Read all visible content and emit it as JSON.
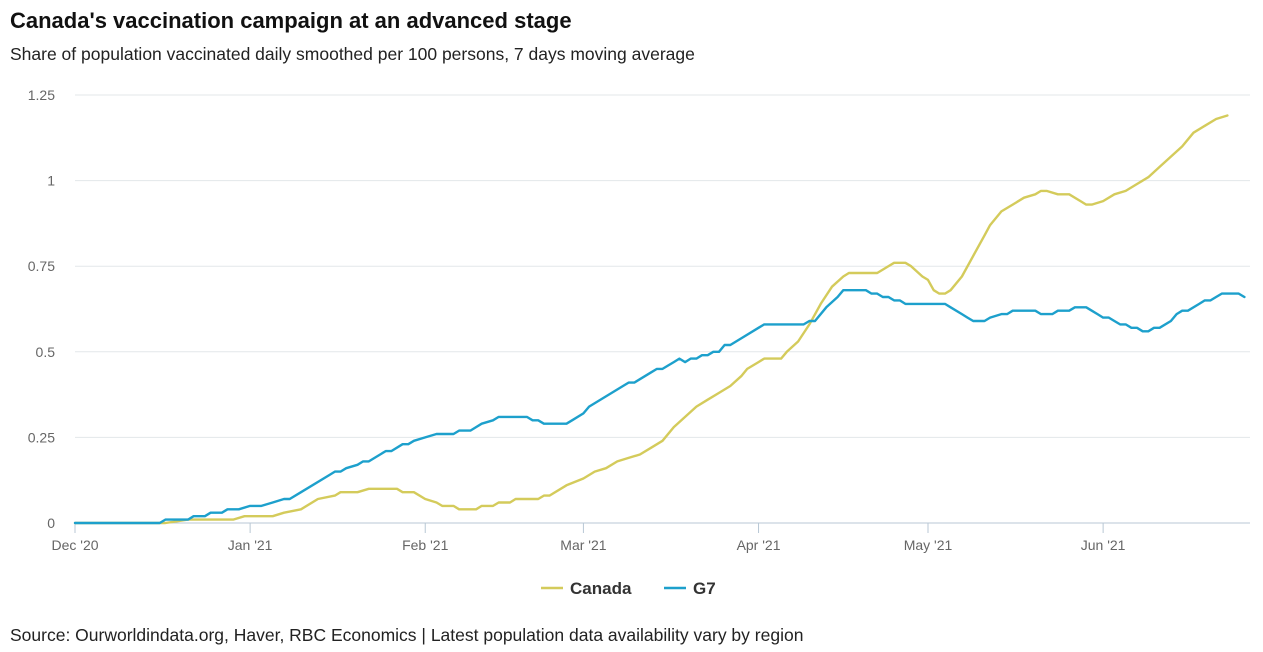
{
  "title": "Canada's vaccination campaign at an advanced stage",
  "subtitle": "Share of population vaccinated daily smoothed per 100 persons, 7 days moving average",
  "source": "Source: Ourworldindata.org, Haver, RBC Economics | Latest population data availability vary by region",
  "colors": {
    "canada": "#d4cb5b",
    "g7": "#1da0cc",
    "grid": "#e3e7ea",
    "axis": "#b8c7d4",
    "tick_text": "#666666"
  },
  "chart_data": {
    "type": "line",
    "title": "Canada's vaccination campaign at an advanced stage",
    "subtitle": "Share of population vaccinated daily smoothed per 100 persons, 7 days moving average",
    "xlabel": "",
    "ylabel": "",
    "ylim": [
      0,
      1.25
    ],
    "yticks": [
      0,
      0.25,
      0.5,
      0.75,
      1,
      1.25
    ],
    "ytick_labels": [
      "0",
      "0.25",
      "0.5",
      "0.75",
      "1",
      "1.25"
    ],
    "x_start": "2020-12-01",
    "x_end": "2021-06-26",
    "xticks": [
      {
        "day": 0,
        "label": "Dec '20"
      },
      {
        "day": 31,
        "label": "Jan '21"
      },
      {
        "day": 62,
        "label": "Feb '21"
      },
      {
        "day": 90,
        "label": "Mar '21"
      },
      {
        "day": 121,
        "label": "Apr '21"
      },
      {
        "day": 151,
        "label": "May '21"
      },
      {
        "day": 182,
        "label": "Jun '21"
      }
    ],
    "grid": true,
    "legend": "bottom-center",
    "series": [
      {
        "name": "Canada",
        "color": "#d4cb5b",
        "points": [
          [
            0,
            0
          ],
          [
            16,
            0
          ],
          [
            18,
            0.005
          ],
          [
            20,
            0.01
          ],
          [
            28,
            0.01
          ],
          [
            30,
            0.02
          ],
          [
            35,
            0.02
          ],
          [
            37,
            0.03
          ],
          [
            40,
            0.04
          ],
          [
            43,
            0.07
          ],
          [
            46,
            0.08
          ],
          [
            47,
            0.09
          ],
          [
            50,
            0.09
          ],
          [
            52,
            0.1
          ],
          [
            57,
            0.1
          ],
          [
            58,
            0.09
          ],
          [
            60,
            0.09
          ],
          [
            62,
            0.07
          ],
          [
            64,
            0.06
          ],
          [
            65,
            0.05
          ],
          [
            67,
            0.05
          ],
          [
            68,
            0.04
          ],
          [
            71,
            0.04
          ],
          [
            72,
            0.05
          ],
          [
            74,
            0.05
          ],
          [
            75,
            0.06
          ],
          [
            77,
            0.06
          ],
          [
            78,
            0.07
          ],
          [
            82,
            0.07
          ],
          [
            83,
            0.08
          ],
          [
            84,
            0.08
          ],
          [
            87,
            0.11
          ],
          [
            90,
            0.13
          ],
          [
            92,
            0.15
          ],
          [
            94,
            0.16
          ],
          [
            96,
            0.18
          ],
          [
            98,
            0.19
          ],
          [
            100,
            0.2
          ],
          [
            102,
            0.22
          ],
          [
            104,
            0.24
          ],
          [
            106,
            0.28
          ],
          [
            108,
            0.31
          ],
          [
            110,
            0.34
          ],
          [
            112,
            0.36
          ],
          [
            114,
            0.38
          ],
          [
            116,
            0.4
          ],
          [
            118,
            0.43
          ],
          [
            119,
            0.45
          ],
          [
            121,
            0.47
          ],
          [
            122,
            0.48
          ],
          [
            125,
            0.48
          ],
          [
            126,
            0.5
          ],
          [
            128,
            0.53
          ],
          [
            130,
            0.58
          ],
          [
            132,
            0.64
          ],
          [
            134,
            0.69
          ],
          [
            136,
            0.72
          ],
          [
            137,
            0.73
          ],
          [
            142,
            0.73
          ],
          [
            143,
            0.74
          ],
          [
            145,
            0.76
          ],
          [
            147,
            0.76
          ],
          [
            148,
            0.75
          ],
          [
            150,
            0.72
          ],
          [
            151,
            0.71
          ],
          [
            152,
            0.68
          ],
          [
            153,
            0.67
          ],
          [
            154,
            0.67
          ],
          [
            155,
            0.68
          ],
          [
            157,
            0.72
          ],
          [
            159,
            0.78
          ],
          [
            161,
            0.84
          ],
          [
            162,
            0.87
          ],
          [
            164,
            0.91
          ],
          [
            166,
            0.93
          ],
          [
            168,
            0.95
          ],
          [
            170,
            0.96
          ],
          [
            171,
            0.97
          ],
          [
            172,
            0.97
          ],
          [
            174,
            0.96
          ],
          [
            176,
            0.96
          ],
          [
            178,
            0.94
          ],
          [
            179,
            0.93
          ],
          [
            180,
            0.93
          ],
          [
            182,
            0.94
          ],
          [
            184,
            0.96
          ],
          [
            186,
            0.97
          ],
          [
            188,
            0.99
          ],
          [
            190,
            1.01
          ],
          [
            192,
            1.04
          ],
          [
            194,
            1.07
          ],
          [
            196,
            1.1
          ],
          [
            198,
            1.14
          ],
          [
            200,
            1.16
          ],
          [
            202,
            1.18
          ],
          [
            204,
            1.19
          ]
        ]
      },
      {
        "name": "G7",
        "color": "#1da0cc",
        "points": [
          [
            0,
            0
          ],
          [
            15,
            0
          ],
          [
            16,
            0.01
          ],
          [
            20,
            0.01
          ],
          [
            21,
            0.02
          ],
          [
            23,
            0.02
          ],
          [
            24,
            0.03
          ],
          [
            26,
            0.03
          ],
          [
            27,
            0.04
          ],
          [
            29,
            0.04
          ],
          [
            31,
            0.05
          ],
          [
            33,
            0.05
          ],
          [
            35,
            0.06
          ],
          [
            37,
            0.07
          ],
          [
            38,
            0.07
          ],
          [
            40,
            0.09
          ],
          [
            45,
            0.14
          ],
          [
            46,
            0.15
          ],
          [
            47,
            0.15
          ],
          [
            48,
            0.16
          ],
          [
            50,
            0.17
          ],
          [
            51,
            0.18
          ],
          [
            52,
            0.18
          ],
          [
            55,
            0.21
          ],
          [
            56,
            0.21
          ],
          [
            58,
            0.23
          ],
          [
            59,
            0.23
          ],
          [
            60,
            0.24
          ],
          [
            62,
            0.25
          ],
          [
            64,
            0.26
          ],
          [
            67,
            0.26
          ],
          [
            68,
            0.27
          ],
          [
            70,
            0.27
          ],
          [
            71,
            0.28
          ],
          [
            72,
            0.29
          ],
          [
            74,
            0.3
          ],
          [
            75,
            0.31
          ],
          [
            80,
            0.31
          ],
          [
            81,
            0.3
          ],
          [
            82,
            0.3
          ],
          [
            83,
            0.29
          ],
          [
            87,
            0.29
          ],
          [
            88,
            0.3
          ],
          [
            90,
            0.32
          ],
          [
            91,
            0.34
          ],
          [
            95,
            0.38
          ],
          [
            97,
            0.4
          ],
          [
            98,
            0.41
          ],
          [
            99,
            0.41
          ],
          [
            100,
            0.42
          ],
          [
            102,
            0.44
          ],
          [
            103,
            0.45
          ],
          [
            104,
            0.45
          ],
          [
            105,
            0.46
          ],
          [
            106,
            0.47
          ],
          [
            107,
            0.48
          ],
          [
            108,
            0.47
          ],
          [
            109,
            0.48
          ],
          [
            110,
            0.48
          ],
          [
            111,
            0.49
          ],
          [
            112,
            0.49
          ],
          [
            113,
            0.5
          ],
          [
            114,
            0.5
          ],
          [
            115,
            0.52
          ],
          [
            116,
            0.52
          ],
          [
            118,
            0.54
          ],
          [
            121,
            0.57
          ],
          [
            122,
            0.58
          ],
          [
            129,
            0.58
          ],
          [
            130,
            0.59
          ],
          [
            131,
            0.59
          ],
          [
            133,
            0.63
          ],
          [
            135,
            0.66
          ],
          [
            136,
            0.68
          ],
          [
            140,
            0.68
          ],
          [
            141,
            0.67
          ],
          [
            142,
            0.67
          ],
          [
            143,
            0.66
          ],
          [
            144,
            0.66
          ],
          [
            145,
            0.65
          ],
          [
            146,
            0.65
          ],
          [
            147,
            0.64
          ],
          [
            154,
            0.64
          ],
          [
            155,
            0.63
          ],
          [
            157,
            0.61
          ],
          [
            158,
            0.6
          ],
          [
            159,
            0.59
          ],
          [
            161,
            0.59
          ],
          [
            162,
            0.6
          ],
          [
            164,
            0.61
          ],
          [
            165,
            0.61
          ],
          [
            166,
            0.62
          ],
          [
            170,
            0.62
          ],
          [
            171,
            0.61
          ],
          [
            173,
            0.61
          ],
          [
            174,
            0.62
          ],
          [
            176,
            0.62
          ],
          [
            177,
            0.63
          ],
          [
            179,
            0.63
          ],
          [
            180,
            0.62
          ],
          [
            181,
            0.61
          ],
          [
            182,
            0.6
          ],
          [
            183,
            0.6
          ],
          [
            184,
            0.59
          ],
          [
            185,
            0.58
          ],
          [
            186,
            0.58
          ],
          [
            187,
            0.57
          ],
          [
            188,
            0.57
          ],
          [
            189,
            0.56
          ],
          [
            190,
            0.56
          ],
          [
            191,
            0.57
          ],
          [
            192,
            0.57
          ],
          [
            194,
            0.59
          ],
          [
            195,
            0.61
          ],
          [
            196,
            0.62
          ],
          [
            197,
            0.62
          ],
          [
            199,
            0.64
          ],
          [
            200,
            0.65
          ],
          [
            201,
            0.65
          ],
          [
            202,
            0.66
          ],
          [
            203,
            0.67
          ],
          [
            206,
            0.67
          ],
          [
            207,
            0.66
          ]
        ]
      }
    ]
  }
}
